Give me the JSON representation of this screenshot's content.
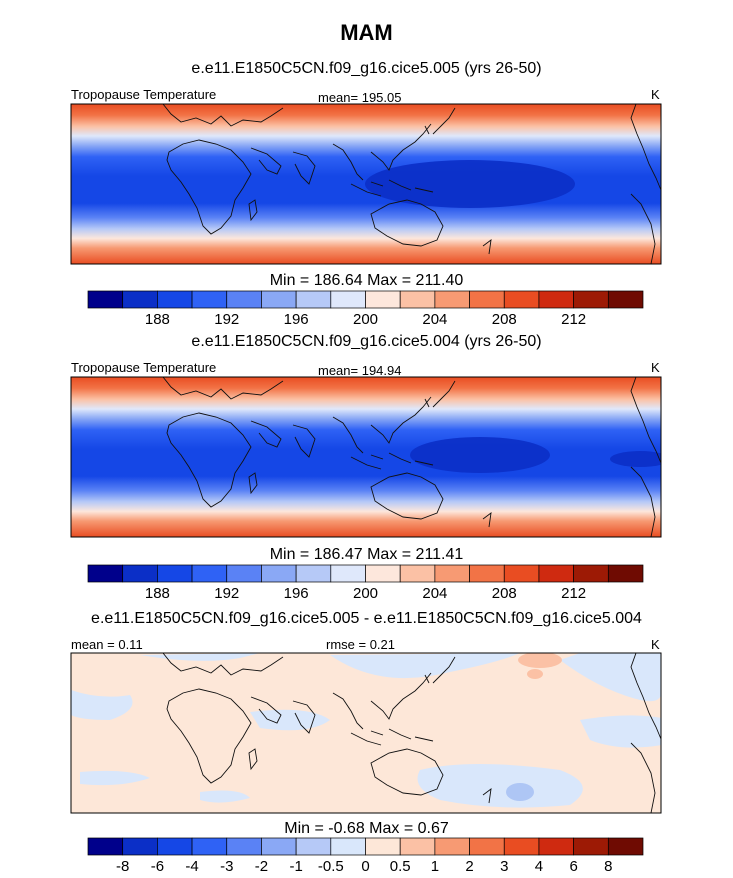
{
  "figure": {
    "title": "MAM"
  },
  "colors": {
    "temp_scale": [
      "#00008b",
      "#0b2fc7",
      "#1547e6",
      "#2f62f5",
      "#5a82f5",
      "#8aa8f5",
      "#b6c9f7",
      "#dfe8fb",
      "#fde7dc",
      "#fbc1a5",
      "#f79a73",
      "#f27346",
      "#e94d22",
      "#cf2a10",
      "#9d1a05",
      "#6f0b02"
    ],
    "diff_scale": [
      "#00008b",
      "#0b2fc7",
      "#1547e6",
      "#2f62f5",
      "#5a82f5",
      "#8aa8f5",
      "#b6c9f7",
      "#d9e7fb",
      "#fde7d8",
      "#fbc1a5",
      "#f79a73",
      "#f27346",
      "#e94d22",
      "#cf2a10",
      "#9d1a05",
      "#6f0b02"
    ],
    "coast": "#111111"
  },
  "chart_data": [
    {
      "type": "heatmap",
      "subtitle": "e.e11.E1850C5CN.f09_g16.cice5.005 (yrs 26-50)",
      "left_label": "Tropopause Temperature",
      "center_label": "mean= 195.05",
      "right_label": "K",
      "stats": "Min = 186.64 Max = 211.40",
      "colorbar_ticks": [
        "188",
        "192",
        "196",
        "200",
        "204",
        "208",
        "212"
      ],
      "min": 186.64,
      "max": 211.4,
      "mean": 195.05
    },
    {
      "type": "heatmap",
      "subtitle": "e.e11.E1850C5CN.f09_g16.cice5.004 (yrs 26-50)",
      "left_label": "Tropopause Temperature",
      "center_label": "mean= 194.94",
      "right_label": "K",
      "stats": "Min = 186.47 Max = 211.41",
      "colorbar_ticks": [
        "188",
        "192",
        "196",
        "200",
        "204",
        "208",
        "212"
      ],
      "min": 186.47,
      "max": 211.41,
      "mean": 194.94
    },
    {
      "type": "heatmap",
      "subtitle": "e.e11.E1850C5CN.f09_g16.cice5.005 - e.e11.E1850C5CN.f09_g16.cice5.004",
      "left_label": "mean =   0.11",
      "center_label": "rmse =   0.21",
      "right_label": "K",
      "stats": "Min =  -0.68 Max =   0.67",
      "colorbar_ticks": [
        "-8",
        "-6",
        "-4",
        "-3",
        "-2",
        "-1",
        "-0.5",
        "0",
        "0.5",
        "1",
        "2",
        "3",
        "4",
        "6",
        "8"
      ],
      "min": -0.68,
      "max": 0.67,
      "mean": 0.11,
      "rmse": 0.21
    }
  ]
}
